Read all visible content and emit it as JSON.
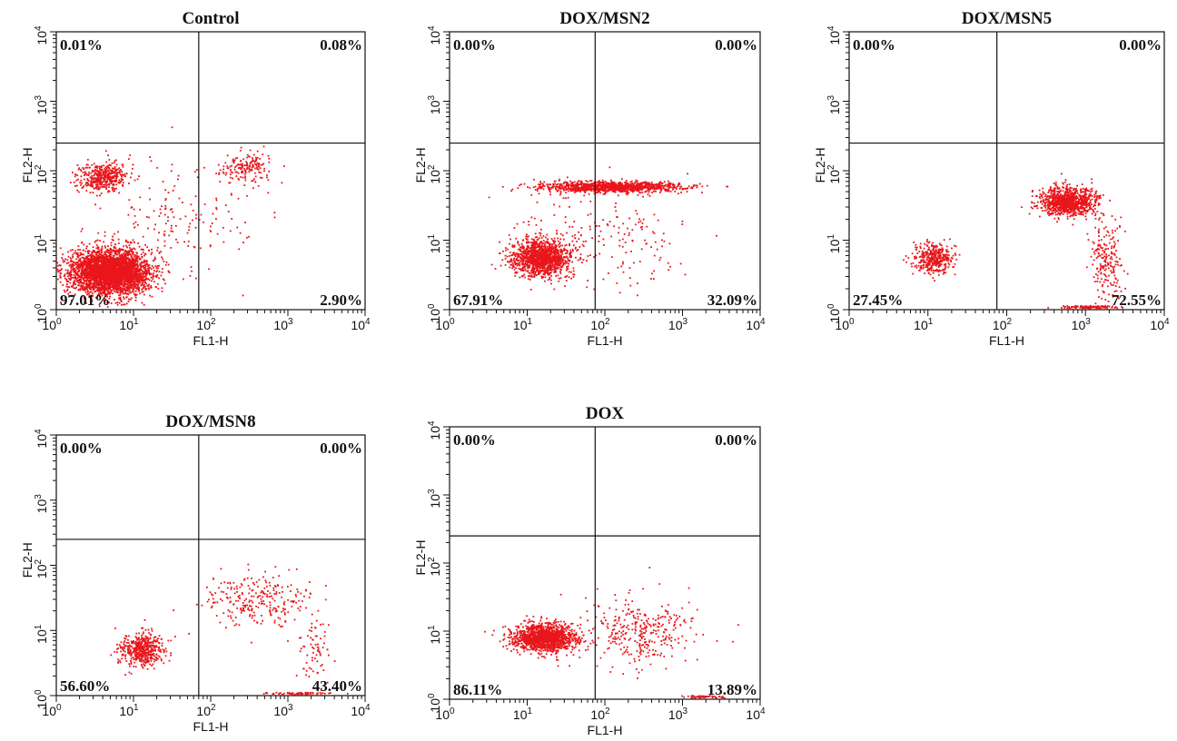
{
  "chart_data": [
    {
      "type": "scatter",
      "title": "Control",
      "xlabel": "FL1-H",
      "ylabel": "FL2-H",
      "x_scale": "log",
      "y_scale": "log",
      "xlim": [
        1,
        10000
      ],
      "ylim": [
        1,
        10000
      ],
      "gate": {
        "x": 70,
        "y": 250
      },
      "quadrants": {
        "upper_left": "0.01%",
        "upper_right": "0.08%",
        "lower_left": "97.01%",
        "lower_right": "2.90%"
      },
      "point_color": "#e8161b",
      "clusters": [
        {
          "x": 5,
          "y": 3.5,
          "sx": 0.26,
          "sy": 0.16,
          "n": 3600
        },
        {
          "x": 4,
          "y": 80,
          "sx": 0.16,
          "sy": 0.1,
          "n": 420
        },
        {
          "x": 300,
          "y": 110,
          "sx": 0.18,
          "sy": 0.12,
          "n": 170
        },
        {
          "x": 30,
          "y": 20,
          "sx": 0.5,
          "sy": 0.4,
          "n": 160
        }
      ]
    },
    {
      "type": "scatter",
      "title": "DOX/MSN2",
      "xlabel": "FL1-H",
      "ylabel": "FL2-H",
      "x_scale": "log",
      "y_scale": "log",
      "xlim": [
        1,
        10000
      ],
      "ylim": [
        1,
        10000
      ],
      "gate": {
        "x": 75,
        "y": 250
      },
      "quadrants": {
        "upper_left": "0.00%",
        "upper_right": "0.00%",
        "lower_left": "67.91%",
        "lower_right": "32.09%"
      },
      "point_color": "#e8161b",
      "clusters": [
        {
          "x": 15,
          "y": 5.5,
          "sx": 0.18,
          "sy": 0.13,
          "n": 1300
        },
        {
          "x": 120,
          "y": 58,
          "sx": 0.45,
          "sy": 0.04,
          "n": 1100
        },
        {
          "x": 80,
          "y": 12,
          "sx": 0.55,
          "sy": 0.35,
          "n": 220
        }
      ]
    },
    {
      "type": "scatter",
      "title": "DOX/MSN5",
      "xlabel": "FL1-H",
      "ylabel": "FL2-H",
      "x_scale": "log",
      "y_scale": "log",
      "xlim": [
        1,
        10000
      ],
      "ylim": [
        1,
        10000
      ],
      "gate": {
        "x": 75,
        "y": 250
      },
      "quadrants": {
        "upper_left": "0.00%",
        "upper_right": "0.00%",
        "lower_left": "27.45%",
        "lower_right": "72.55%"
      },
      "point_color": "#e8161b",
      "clusters": [
        {
          "x": 12,
          "y": 5.5,
          "sx": 0.12,
          "sy": 0.11,
          "n": 380
        },
        {
          "x": 600,
          "y": 36,
          "sx": 0.18,
          "sy": 0.1,
          "n": 1000
        },
        {
          "x": 1900,
          "y": 5,
          "sx": 0.1,
          "sy": 0.3,
          "n": 200
        },
        {
          "x": 1200,
          "y": 1.08,
          "sx": 0.18,
          "sy": 0.01,
          "n": 120
        }
      ]
    },
    {
      "type": "scatter",
      "title": "DOX/MSN8",
      "xlabel": "FL1-H",
      "ylabel": "FL2-H",
      "x_scale": "log",
      "y_scale": "log",
      "xlim": [
        1,
        10000
      ],
      "ylim": [
        1,
        10000
      ],
      "gate": {
        "x": 70,
        "y": 250
      },
      "quadrants": {
        "upper_left": "0.00%",
        "upper_right": "0.00%",
        "lower_left": "56.60%",
        "lower_right": "43.40%"
      },
      "point_color": "#e8161b",
      "clusters": [
        {
          "x": 13,
          "y": 5,
          "sx": 0.14,
          "sy": 0.13,
          "n": 480
        },
        {
          "x": 400,
          "y": 30,
          "sx": 0.35,
          "sy": 0.22,
          "n": 260
        },
        {
          "x": 2200,
          "y": 5,
          "sx": 0.08,
          "sy": 0.3,
          "n": 70
        },
        {
          "x": 1500,
          "y": 1.08,
          "sx": 0.2,
          "sy": 0.01,
          "n": 60
        }
      ]
    },
    {
      "type": "scatter",
      "title": "DOX",
      "xlabel": "FL1-H",
      "ylabel": "FL2-H",
      "x_scale": "log",
      "y_scale": "log",
      "xlim": [
        1,
        10000
      ],
      "ylim": [
        1,
        10000
      ],
      "gate": {
        "x": 75,
        "y": 250
      },
      "quadrants": {
        "upper_left": "0.00%",
        "upper_right": "0.00%",
        "lower_left": "86.11%",
        "lower_right": "13.89%"
      },
      "point_color": "#e8161b",
      "clusters": [
        {
          "x": 17,
          "y": 8,
          "sx": 0.2,
          "sy": 0.1,
          "n": 1400
        },
        {
          "x": 300,
          "y": 10,
          "sx": 0.35,
          "sy": 0.25,
          "n": 330
        },
        {
          "x": 2000,
          "y": 1.08,
          "sx": 0.15,
          "sy": 0.01,
          "n": 50
        }
      ]
    }
  ]
}
